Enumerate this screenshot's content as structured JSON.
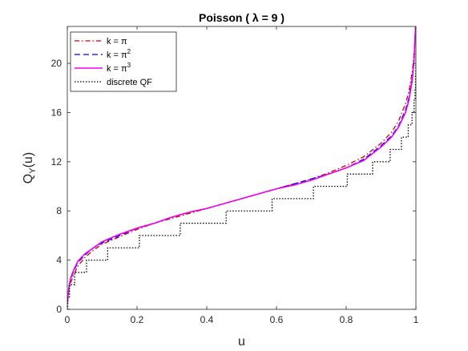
{
  "chart_data": {
    "type": "line",
    "title": "Poisson ( λ = 9 )",
    "xlabel": "u",
    "ylabel": "Q_Y(u)",
    "xlim": [
      0,
      1
    ],
    "ylim": [
      0,
      23
    ],
    "xticks": [
      0,
      0.2,
      0.4,
      0.6,
      0.8,
      1
    ],
    "xtick_labels": [
      "0",
      "0.2",
      "0.4",
      "0.6",
      "0.8",
      "1"
    ],
    "yticks": [
      0,
      4,
      8,
      12,
      16,
      20
    ],
    "ytick_labels": [
      "0",
      "4",
      "8",
      "12",
      "16",
      "20"
    ],
    "grid": false,
    "legend_position": "top-left",
    "series": [
      {
        "name": "k = π",
        "color": "#cc0000",
        "style": "dashdot",
        "x": [
          0.0,
          0.005,
          0.01,
          0.02,
          0.03,
          0.05,
          0.07,
          0.1,
          0.15,
          0.2,
          0.25,
          0.3,
          0.35,
          0.4,
          0.45,
          0.5,
          0.55,
          0.6,
          0.65,
          0.7,
          0.75,
          0.8,
          0.85,
          0.9,
          0.93,
          0.95,
          0.97,
          0.98,
          0.99,
          0.995,
          0.999
        ],
        "y": [
          0.4,
          1.6,
          2.2,
          2.9,
          3.5,
          4.2,
          4.7,
          5.3,
          5.9,
          6.5,
          7.0,
          7.4,
          7.8,
          8.2,
          8.6,
          9.0,
          9.4,
          9.8,
          10.2,
          10.6,
          11.1,
          11.7,
          12.4,
          13.5,
          14.4,
          15.3,
          16.7,
          17.7,
          19.4,
          20.9,
          23.0
        ]
      },
      {
        "name": "k = π²",
        "color": "#0000ee",
        "style": "dashed",
        "x": [
          0.0,
          0.005,
          0.01,
          0.02,
          0.03,
          0.05,
          0.07,
          0.1,
          0.15,
          0.2,
          0.25,
          0.3,
          0.35,
          0.4,
          0.45,
          0.5,
          0.55,
          0.6,
          0.65,
          0.7,
          0.75,
          0.8,
          0.85,
          0.9,
          0.93,
          0.95,
          0.97,
          0.98,
          0.99,
          0.995,
          0.999
        ],
        "y": [
          0.5,
          1.8,
          2.5,
          3.2,
          3.8,
          4.4,
          4.9,
          5.4,
          6.0,
          6.6,
          7.0,
          7.5,
          7.9,
          8.2,
          8.6,
          9.0,
          9.4,
          9.8,
          10.2,
          10.6,
          11.0,
          11.5,
          12.2,
          13.3,
          14.1,
          14.9,
          16.2,
          17.2,
          18.9,
          20.6,
          23.0
        ]
      },
      {
        "name": "k = π³",
        "color": "#ee00ee",
        "style": "solid",
        "x": [
          0.0,
          0.005,
          0.01,
          0.02,
          0.03,
          0.05,
          0.07,
          0.1,
          0.15,
          0.2,
          0.25,
          0.3,
          0.35,
          0.4,
          0.45,
          0.5,
          0.55,
          0.6,
          0.65,
          0.7,
          0.75,
          0.8,
          0.85,
          0.9,
          0.93,
          0.95,
          0.97,
          0.98,
          0.99,
          0.995,
          0.999
        ],
        "y": [
          0.5,
          1.9,
          2.6,
          3.3,
          3.9,
          4.5,
          4.9,
          5.5,
          6.1,
          6.6,
          7.0,
          7.5,
          7.9,
          8.2,
          8.6,
          9.0,
          9.4,
          9.8,
          10.1,
          10.5,
          11.0,
          11.5,
          12.1,
          13.2,
          14.0,
          14.8,
          16.0,
          17.0,
          18.7,
          20.4,
          23.0
        ]
      },
      {
        "name": "discrete QF",
        "color": "#000000",
        "style": "dotted",
        "step": true,
        "x": [
          0.0,
          0.0012,
          0.0062,
          0.0212,
          0.055,
          0.1157,
          0.2068,
          0.3239,
          0.4557,
          0.5874,
          0.706,
          0.803,
          0.8758,
          0.9261,
          0.9585,
          0.978,
          0.9889,
          0.9947,
          0.9976,
          0.9989,
          0.9996,
          1.0
        ],
        "y": [
          0,
          1,
          2,
          3,
          4,
          5,
          6,
          7,
          8,
          9,
          10,
          11,
          12,
          13,
          14,
          15,
          16,
          17,
          18,
          19,
          20,
          21
        ]
      }
    ]
  }
}
